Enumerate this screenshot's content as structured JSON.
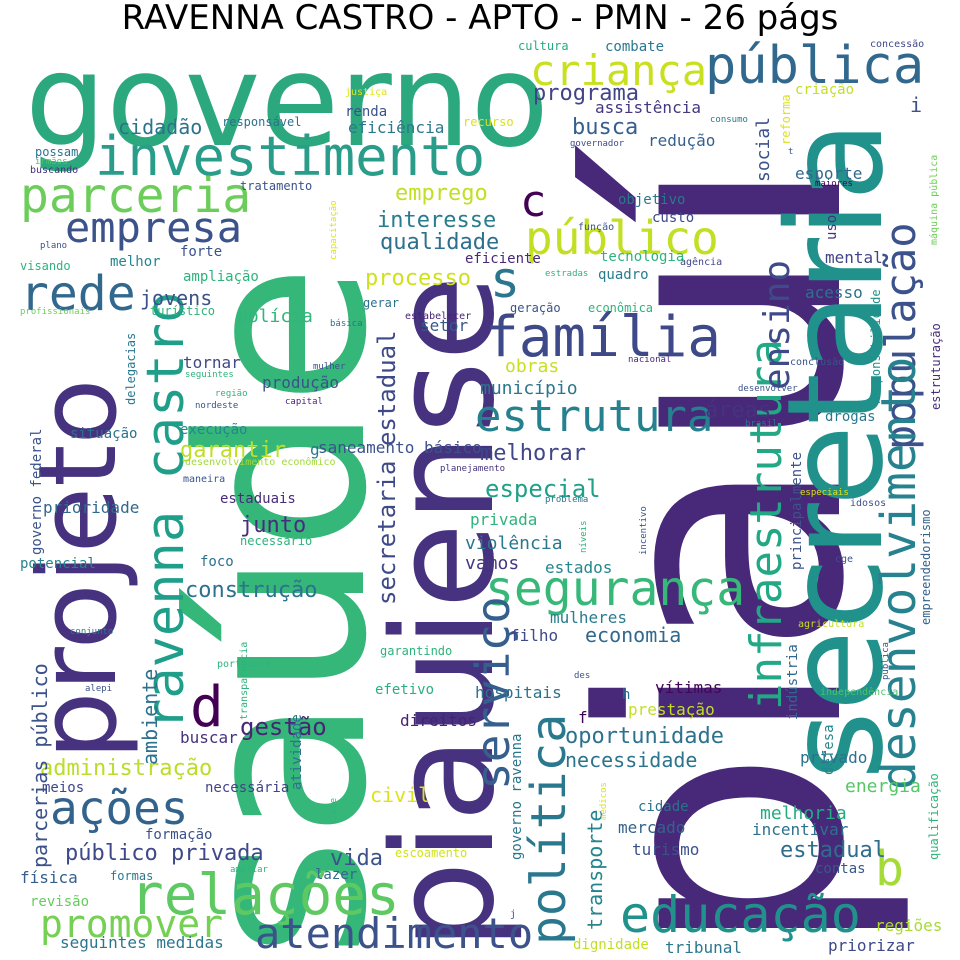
{
  "title": "RAVENNA CASTRO - APTO - PMN - 26 págs",
  "palette": [
    "#440154",
    "#46327e",
    "#365c8d",
    "#277f8e",
    "#1fa187",
    "#4ac16d",
    "#a0da39",
    "#fde725"
  ],
  "words": [
    {
      "text": "governo",
      "c": "#2ca87f"
    },
    {
      "text": "piauí",
      "c": "#482878"
    },
    {
      "text": "saúde",
      "c": "#35b779"
    },
    {
      "text": "piauiense",
      "c": "#46327e"
    },
    {
      "text": "secretaria",
      "c": "#21918c"
    },
    {
      "text": "projeto",
      "c": "#46327e"
    },
    {
      "text": "investimento",
      "c": "#2a9d8a"
    },
    {
      "text": "pública",
      "c": "#31688e"
    },
    {
      "text": "criança",
      "c": "#c8e020"
    },
    {
      "text": "parceria",
      "c": "#6ccd5a"
    },
    {
      "text": "empresa",
      "c": "#3b528b"
    },
    {
      "text": "rede",
      "c": "#31688e"
    },
    {
      "text": "ravenna castro",
      "c": "#1f9e89"
    },
    {
      "text": "família",
      "c": "#3e4989"
    },
    {
      "text": "público",
      "c": "#c2df23"
    },
    {
      "text": "população",
      "c": "#3b528b"
    },
    {
      "text": "desenvolvimento",
      "c": "#26828e"
    },
    {
      "text": "infraestrutura",
      "c": "#22a884"
    },
    {
      "text": "segurança",
      "c": "#37b878"
    },
    {
      "text": "política",
      "c": "#2a788e"
    },
    {
      "text": "serviço",
      "c": "#355f8d"
    },
    {
      "text": "estrutura",
      "c": "#26818e"
    },
    {
      "text": "educação",
      "c": "#21918c"
    },
    {
      "text": "relações",
      "c": "#5ec962"
    },
    {
      "text": "ações",
      "c": "#33638d"
    },
    {
      "text": "atendimento",
      "c": "#3b528b"
    },
    {
      "text": "promover",
      "c": "#75d054"
    },
    {
      "text": "ensino",
      "c": "#3e4a89"
    },
    {
      "text": "b",
      "c": "#a5db36"
    },
    {
      "text": "d",
      "c": "#440154"
    },
    {
      "text": "c",
      "c": "#440154"
    },
    {
      "text": "s",
      "c": "#2a768e"
    },
    {
      "text": "emprego",
      "c": "#c0df25"
    },
    {
      "text": "interesse",
      "c": "#287c8e"
    },
    {
      "text": "qualidade",
      "c": "#2d708e"
    },
    {
      "text": "processo",
      "c": "#d0e11c"
    },
    {
      "text": "jovens",
      "c": "#3b528b"
    },
    {
      "text": "polícia",
      "c": "#31b57b"
    },
    {
      "text": "cidadão",
      "c": "#2c728e"
    },
    {
      "text": "programa",
      "c": "#414487"
    },
    {
      "text": "busca",
      "c": "#355f8d"
    },
    {
      "text": "assistência",
      "c": "#453781"
    },
    {
      "text": "eficiência",
      "c": "#2a788e"
    },
    {
      "text": "social",
      "c": "#3b528b"
    },
    {
      "text": "estadual",
      "c": "#2f6c8e"
    },
    {
      "text": "secretaria estadual",
      "c": "#3e4989"
    },
    {
      "text": "áreas",
      "c": "#46337f"
    },
    {
      "text": "melhorar",
      "c": "#404688"
    },
    {
      "text": "garantir",
      "c": "#bddf26"
    },
    {
      "text": "especial",
      "c": "#1fa088"
    },
    {
      "text": "privada",
      "c": "#2eb37c"
    },
    {
      "text": "violência",
      "c": "#2a788e"
    },
    {
      "text": "vamos",
      "c": "#453882"
    },
    {
      "text": "estados",
      "c": "#24868e"
    },
    {
      "text": "mulheres",
      "c": "#287d8e"
    },
    {
      "text": "economia",
      "c": "#31688e"
    },
    {
      "text": "filho",
      "c": "#3e4a89"
    },
    {
      "text": "construção",
      "c": "#2c718e"
    },
    {
      "text": "junto",
      "c": "#472d7b"
    },
    {
      "text": "gestão",
      "c": "#482475"
    },
    {
      "text": "administração",
      "c": "#b8de29"
    },
    {
      "text": "oportunidade",
      "c": "#2c728e"
    },
    {
      "text": "necessidade",
      "c": "#2b748e"
    },
    {
      "text": "civil",
      "c": "#dde318"
    },
    {
      "text": "vida",
      "c": "#3b528b"
    },
    {
      "text": "público privada",
      "c": "#3e4989"
    },
    {
      "text": "parcerias público",
      "c": "#3b528b"
    },
    {
      "text": "ambiente",
      "c": "#2c728e"
    },
    {
      "text": "buscar",
      "c": "#46337f"
    },
    {
      "text": "transporte",
      "c": "#25858e"
    },
    {
      "text": "obras",
      "c": "#c8e020"
    },
    {
      "text": "município",
      "c": "#2a768e"
    },
    {
      "text": "saneamento básico",
      "c": "#3b528b"
    },
    {
      "text": "setor",
      "c": "#38598c"
    },
    {
      "text": "produção",
      "c": "#3b528b"
    },
    {
      "text": "tornar",
      "c": "#404688"
    },
    {
      "text": "execução",
      "c": "#24868e"
    },
    {
      "text": "situação",
      "c": "#2d708e"
    },
    {
      "text": "prioridade",
      "c": "#31688e"
    },
    {
      "text": "estaduais",
      "c": "#472c7a"
    },
    {
      "text": "foco",
      "c": "#2c718e"
    },
    {
      "text": "potencial",
      "c": "#26828e"
    },
    {
      "text": "meios",
      "c": "#3f4788"
    },
    {
      "text": "necessária",
      "c": "#414487"
    },
    {
      "text": "formação",
      "c": "#3b528b"
    },
    {
      "text": "física",
      "c": "#355f8d"
    },
    {
      "text": "formas",
      "c": "#2a788e"
    },
    {
      "text": "revisão",
      "c": "#65cb5e"
    },
    {
      "text": "seguintes medidas",
      "c": "#2a768e"
    },
    {
      "text": "lazer",
      "c": "#31688e"
    },
    {
      "text": "escoamento",
      "c": "#d2e21b"
    },
    {
      "text": "prestação",
      "c": "#c0df25"
    },
    {
      "text": "vítimas",
      "c": "#450559"
    },
    {
      "text": "hospitais",
      "c": "#2c718e"
    },
    {
      "text": "efetivo",
      "c": "#2ab07f"
    },
    {
      "text": "direitos",
      "c": "#482173"
    },
    {
      "text": "garantindo",
      "c": "#2eb37c"
    },
    {
      "text": "privado",
      "c": "#2c718e"
    },
    {
      "text": "energia",
      "c": "#56c667"
    },
    {
      "text": "melhoria",
      "c": "#25ab82"
    },
    {
      "text": "incentivar",
      "c": "#2c718e"
    },
    {
      "text": "mercado",
      "c": "#33638d"
    },
    {
      "text": "cidade",
      "c": "#2d708e"
    },
    {
      "text": "turismo",
      "c": "#3b528b"
    },
    {
      "text": "regiões",
      "c": "#a8db34"
    },
    {
      "text": "priorizar",
      "c": "#3e4989"
    },
    {
      "text": "tribunal",
      "c": "#2a778e"
    },
    {
      "text": "dignidade",
      "c": "#c0df25"
    },
    {
      "text": "contas",
      "c": "#38588c"
    },
    {
      "text": "defesa",
      "c": "#24878e"
    },
    {
      "text": "agricultura",
      "c": "#c2df23"
    },
    {
      "text": "indústria",
      "c": "#31688e"
    },
    {
      "text": "independência",
      "c": "#4ac16d"
    },
    {
      "text": "empreendedorismo",
      "c": "#33638d"
    },
    {
      "text": "qualificação",
      "c": "#2eb37c"
    },
    {
      "text": "principalmente",
      "c": "#3b528b"
    },
    {
      "text": "drogas",
      "c": "#2a788e"
    },
    {
      "text": "mental",
      "c": "#414487"
    },
    {
      "text": "acesso",
      "c": "#2c728e"
    },
    {
      "text": "responsabilidade",
      "c": "#21918c"
    },
    {
      "text": "estruturação",
      "c": "#472d7b"
    },
    {
      "text": "esporte",
      "c": "#31688e"
    },
    {
      "text": "uso",
      "c": "#46327e"
    },
    {
      "text": "maiores",
      "c": "#440154"
    },
    {
      "text": "máquina pública",
      "c": "#6ece58"
    },
    {
      "text": "concessão",
      "c": "#404688"
    },
    {
      "text": "criação",
      "c": "#c2df23"
    },
    {
      "text": "reforma",
      "c": "#dde318"
    },
    {
      "text": "combate",
      "c": "#2a788e"
    },
    {
      "text": "cultura",
      "c": "#25ab82"
    },
    {
      "text": "justiça",
      "c": "#dde318"
    },
    {
      "text": "renda",
      "c": "#3b528b"
    },
    {
      "text": "responsável",
      "c": "#2d708e"
    },
    {
      "text": "recurso",
      "c": "#d8e219"
    },
    {
      "text": "redução",
      "c": "#355f8d"
    },
    {
      "text": "possam",
      "c": "#2c728e"
    },
    {
      "text": "irmãos",
      "c": "#4ac16d"
    },
    {
      "text": "buscando",
      "c": "#46327e"
    },
    {
      "text": "tratamento",
      "c": "#3b528b"
    },
    {
      "text": "objetivo",
      "c": "#2a788e"
    },
    {
      "text": "custo",
      "c": "#3e4989"
    },
    {
      "text": "eficiente",
      "c": "#482878"
    },
    {
      "text": "tecnologia",
      "c": "#2eb37c"
    },
    {
      "text": "agência",
      "c": "#404688"
    },
    {
      "text": "quadro",
      "c": "#287c8e"
    },
    {
      "text": "geração",
      "c": "#3b528b"
    },
    {
      "text": "econômica",
      "c": "#2eb37c"
    },
    {
      "text": "estabelecer",
      "c": "#482475"
    },
    {
      "text": "ampliação",
      "c": "#2eb37c"
    },
    {
      "text": "melhor",
      "c": "#24868e"
    },
    {
      "text": "forte",
      "c": "#3b528b"
    },
    {
      "text": "turístico",
      "c": "#2eb37c"
    },
    {
      "text": "gerar",
      "c": "#2c728e"
    },
    {
      "text": "visando",
      "c": "#2eb37c"
    },
    {
      "text": "plano",
      "c": "#3b528b"
    },
    {
      "text": "profissionais",
      "c": "#6ece58"
    },
    {
      "text": "capacitação",
      "c": "#dde318"
    },
    {
      "text": "básica",
      "c": "#2c728e"
    },
    {
      "text": "mulher",
      "c": "#3b528b"
    },
    {
      "text": "seguintes",
      "c": "#2eb37c"
    },
    {
      "text": "delegacias",
      "c": "#2a788e"
    },
    {
      "text": "região",
      "c": "#2eb37c"
    },
    {
      "text": "nordeste",
      "c": "#3b528b"
    },
    {
      "text": "capital",
      "c": "#482878"
    },
    {
      "text": "nacional",
      "c": "#482878"
    },
    {
      "text": "conclusão",
      "c": "#3b528b"
    },
    {
      "text": "desenvolver",
      "c": "#3b528b"
    },
    {
      "text": "brasil",
      "c": "#2a788e"
    },
    {
      "text": "governo federal",
      "c": "#3b528b"
    },
    {
      "text": "desenvolvimento econômico",
      "c": "#a0da39"
    },
    {
      "text": "maneira",
      "c": "#3b528b"
    },
    {
      "text": "planejamento",
      "c": "#46327e"
    },
    {
      "text": "problema",
      "c": "#2c728e"
    },
    {
      "text": "necessário",
      "c": "#2eb37c"
    },
    {
      "text": "níveis",
      "c": "#2eb37c"
    },
    {
      "text": "incentivo",
      "c": "#3b528b"
    },
    {
      "text": "especiais",
      "c": "#dde318"
    },
    {
      "text": "idosos",
      "c": "#3b528b"
    },
    {
      "text": "cge",
      "c": "#3b528b"
    },
    {
      "text": "conjunto",
      "c": "#2a788e"
    },
    {
      "text": "portadora",
      "c": "#2eb37c"
    },
    {
      "text": "transparência",
      "c": "#2eb37c"
    },
    {
      "text": "alepi",
      "c": "#3b528b"
    },
    {
      "text": "atividade",
      "c": "#2c728e"
    },
    {
      "text": "governo ravenna",
      "c": "#2a788e"
    },
    {
      "text": "livre",
      "c": "#2eb37c"
    },
    {
      "text": "médicos",
      "c": "#dde318"
    },
    {
      "text": "des",
      "c": "#3b528b"
    },
    {
      "text": "f",
      "c": "#440154"
    },
    {
      "text": "h",
      "c": "#2c728e"
    },
    {
      "text": "i",
      "c": "#3b528b"
    },
    {
      "text": "j",
      "c": "#3b528b"
    },
    {
      "text": "t",
      "c": "#3b528b"
    },
    {
      "text": "g",
      "c": "#2a788e"
    },
    {
      "text": "ampliar",
      "c": "#2eb37c"
    },
    {
      "text": "função",
      "c": "#3b528b"
    },
    {
      "text": "estradas",
      "c": "#2eb37c"
    },
    {
      "text": "governador",
      "c": "#3e4989"
    },
    {
      "text": "consumo",
      "c": "#2a788e"
    },
    {
      "text": "publica",
      "c": "#3b528b"
    }
  ]
}
